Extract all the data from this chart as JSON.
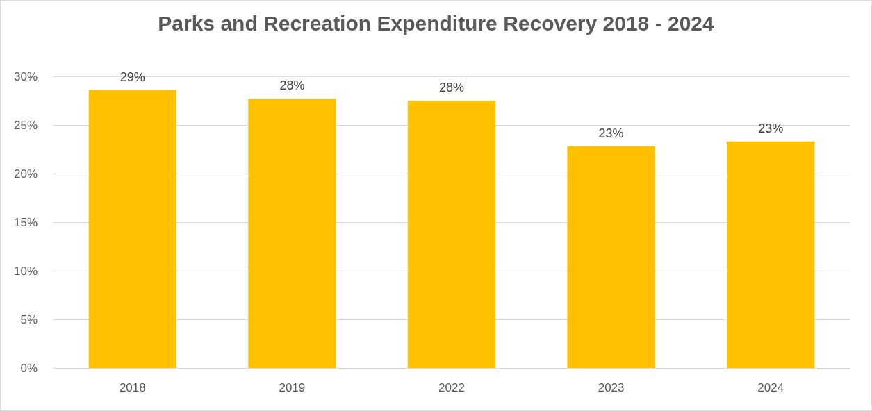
{
  "chart_data": {
    "type": "bar",
    "title": "Parks and Recreation Expenditure Recovery 2018 - 2024",
    "categories": [
      "2018",
      "2019",
      "2022",
      "2023",
      "2024"
    ],
    "values": [
      28.6,
      27.7,
      27.5,
      22.8,
      23.3
    ],
    "value_labels": [
      "29%",
      "28%",
      "28%",
      "23%",
      "23%"
    ],
    "color": "#ffc000",
    "ylim": [
      0,
      30
    ],
    "yticks": [
      {
        "value": 0,
        "label": "0%"
      },
      {
        "value": 5,
        "label": "5%"
      },
      {
        "value": 10,
        "label": "10%"
      },
      {
        "value": 15,
        "label": "15%"
      },
      {
        "value": 20,
        "label": "20%"
      },
      {
        "value": 25,
        "label": "25%"
      },
      {
        "value": 30,
        "label": "30%"
      }
    ],
    "grid": "y"
  }
}
